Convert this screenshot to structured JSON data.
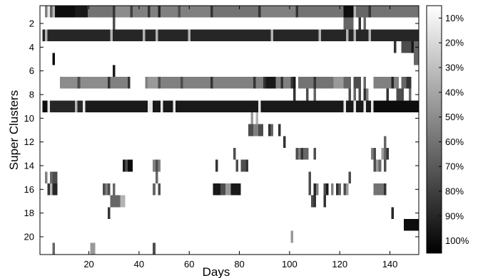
{
  "chart_data": {
    "type": "heatmap",
    "xlabel": "Days",
    "ylabel": "Super Clusters",
    "x_range": [
      1,
      151
    ],
    "y_range": [
      1,
      21
    ],
    "y_reversed": true,
    "x_ticks": [
      20,
      40,
      60,
      80,
      100,
      120,
      140
    ],
    "y_ticks": [
      2,
      4,
      6,
      8,
      10,
      12,
      14,
      16,
      18,
      20
    ],
    "colorbar": {
      "position": "right",
      "range": [
        0.05,
        1.05
      ],
      "ticks": [
        "10%",
        "20%",
        "30%",
        "40%",
        "50%",
        "60%",
        "70%",
        "80%",
        "90%",
        "100%"
      ],
      "tick_values": [
        0.1,
        0.2,
        0.3,
        0.4,
        0.5,
        0.6,
        0.7,
        0.8,
        0.9,
        1.0
      ],
      "colormap": "gray-reversed"
    },
    "colormap_low": "#ffffff",
    "colormap_high": "#000000",
    "rows": [
      {
        "cluster": 1,
        "segments": [
          [
            3,
            3,
            0.5
          ],
          [
            4,
            4,
            0.1
          ],
          [
            5,
            5,
            0.6
          ],
          [
            6,
            6,
            0.3
          ],
          [
            7,
            14,
            0.95
          ],
          [
            15,
            19,
            0.9
          ],
          [
            20,
            29,
            0.55
          ],
          [
            30,
            30,
            0.8
          ],
          [
            31,
            36,
            0.45
          ],
          [
            37,
            37,
            0.75
          ],
          [
            38,
            43,
            0.5
          ],
          [
            44,
            44,
            0.8
          ],
          [
            45,
            47,
            0.5
          ],
          [
            48,
            48,
            0.85
          ],
          [
            49,
            55,
            0.5
          ],
          [
            56,
            56,
            0.7
          ],
          [
            57,
            68,
            0.5
          ],
          [
            69,
            69,
            0.8
          ],
          [
            70,
            87,
            0.55
          ],
          [
            88,
            88,
            0.8
          ],
          [
            89,
            102,
            0.5
          ],
          [
            103,
            103,
            0.8
          ],
          [
            104,
            121,
            0.55
          ],
          [
            122,
            125,
            0.95
          ],
          [
            126,
            126,
            0.3
          ],
          [
            127,
            131,
            0.6
          ],
          [
            132,
            132,
            0.8
          ],
          [
            133,
            151,
            0.55
          ]
        ]
      },
      {
        "cluster": 2,
        "segments": [
          [
            30,
            30,
            0.7
          ],
          [
            122,
            125,
            0.6
          ],
          [
            128,
            128,
            0.8
          ],
          [
            130,
            130,
            0.6
          ]
        ]
      },
      {
        "cluster": 3,
        "segments": [
          [
            2,
            2,
            0.85
          ],
          [
            3,
            3,
            0.3
          ],
          [
            4,
            28,
            0.85
          ],
          [
            29,
            29,
            0.3
          ],
          [
            30,
            41,
            0.85
          ],
          [
            42,
            42,
            0.3
          ],
          [
            43,
            46,
            0.85
          ],
          [
            47,
            47,
            0.3
          ],
          [
            48,
            59,
            0.85
          ],
          [
            60,
            60,
            0.3
          ],
          [
            61,
            92,
            0.85
          ],
          [
            93,
            93,
            0.3
          ],
          [
            94,
            111,
            0.85
          ],
          [
            112,
            112,
            0.3
          ],
          [
            113,
            122,
            0.85
          ],
          [
            123,
            123,
            0.3
          ],
          [
            124,
            125,
            0.85
          ],
          [
            126,
            126,
            0.3
          ],
          [
            127,
            131,
            0.85
          ],
          [
            132,
            132,
            0.3
          ],
          [
            133,
            151,
            0.85
          ]
        ]
      },
      {
        "cluster": 4,
        "segments": [
          [
            142,
            142,
            0.8
          ],
          [
            145,
            148,
            0.7
          ],
          [
            149,
            149,
            0.9
          ],
          [
            150,
            151,
            0.6
          ]
        ]
      },
      {
        "cluster": 5,
        "segments": [
          [
            6,
            6,
            0.95
          ],
          [
            150,
            151,
            0.6
          ]
        ]
      },
      {
        "cluster": 6,
        "segments": [
          [
            30,
            30,
            0.9
          ]
        ]
      },
      {
        "cluster": 7,
        "segments": [
          [
            9,
            15,
            0.45
          ],
          [
            16,
            16,
            0.7
          ],
          [
            17,
            27,
            0.45
          ],
          [
            28,
            28,
            0.8
          ],
          [
            29,
            35,
            0.5
          ],
          [
            36,
            36,
            0.8
          ],
          [
            43,
            43,
            0.5
          ],
          [
            44,
            47,
            0.4
          ],
          [
            48,
            48,
            0.7
          ],
          [
            49,
            56,
            0.5
          ],
          [
            57,
            57,
            0.7
          ],
          [
            58,
            68,
            0.5
          ],
          [
            69,
            69,
            0.8
          ],
          [
            70,
            85,
            0.5
          ],
          [
            86,
            86,
            0.8
          ],
          [
            87,
            89,
            0.5
          ],
          [
            90,
            90,
            0.8
          ],
          [
            91,
            94,
            0.9
          ],
          [
            95,
            96,
            0.5
          ],
          [
            97,
            97,
            0.8
          ],
          [
            98,
            100,
            0.5
          ],
          [
            101,
            101,
            0.8
          ],
          [
            102,
            102,
            0.9
          ],
          [
            104,
            109,
            0.55
          ],
          [
            110,
            110,
            0.8
          ],
          [
            111,
            117,
            0.55
          ],
          [
            118,
            121,
            0.4
          ],
          [
            122,
            124,
            0.6
          ],
          [
            126,
            128,
            0.7
          ],
          [
            130,
            130,
            0.6
          ],
          [
            134,
            140,
            0.5
          ],
          [
            141,
            141,
            0.85
          ],
          [
            142,
            143,
            0.5
          ],
          [
            145,
            146,
            0.6
          ],
          [
            147,
            148,
            0.8
          ]
        ]
      },
      {
        "cluster": 8,
        "segments": [
          [
            102,
            102,
            0.8
          ],
          [
            107,
            107,
            0.7
          ],
          [
            110,
            110,
            0.6
          ],
          [
            124,
            124,
            0.7
          ],
          [
            126,
            126,
            0.6
          ],
          [
            128,
            128,
            0.7
          ],
          [
            130,
            130,
            0.8
          ],
          [
            131,
            131,
            0.5
          ],
          [
            139,
            139,
            0.8
          ],
          [
            143,
            145,
            0.7
          ],
          [
            148,
            148,
            0.6
          ]
        ]
      },
      {
        "cluster": 9,
        "segments": [
          [
            2,
            3,
            0.95
          ],
          [
            4,
            4,
            0.1
          ],
          [
            5,
            14,
            0.85
          ],
          [
            15,
            15,
            0.3
          ],
          [
            16,
            17,
            0.85
          ],
          [
            18,
            18,
            0.1
          ],
          [
            19,
            43,
            0.9
          ],
          [
            44,
            45,
            0.1
          ],
          [
            46,
            48,
            0.9
          ],
          [
            49,
            49,
            0.1
          ],
          [
            50,
            53,
            0.9
          ],
          [
            54,
            54,
            0.1
          ],
          [
            55,
            87,
            0.9
          ],
          [
            88,
            88,
            0.1
          ],
          [
            89,
            121,
            0.9
          ],
          [
            122,
            122,
            0.1
          ],
          [
            123,
            125,
            0.9
          ],
          [
            126,
            126,
            0.1
          ],
          [
            127,
            129,
            0.9
          ],
          [
            130,
            130,
            0.1
          ],
          [
            131,
            132,
            0.9
          ],
          [
            133,
            133,
            0.1
          ],
          [
            134,
            151,
            0.95
          ]
        ]
      },
      {
        "cluster": 10,
        "segments": [
          [
            85,
            85,
            0.4
          ],
          [
            87,
            87,
            0.3
          ]
        ]
      },
      {
        "cluster": 11,
        "segments": [
          [
            84,
            85,
            0.7
          ],
          [
            86,
            87,
            0.5
          ],
          [
            88,
            89,
            0.7
          ],
          [
            92,
            92,
            0.8
          ],
          [
            93,
            93,
            0.6
          ],
          [
            96,
            96,
            0.8
          ]
        ]
      },
      {
        "cluster": 12,
        "segments": [
          [
            98,
            98,
            0.8
          ],
          [
            138,
            138,
            0.6
          ]
        ]
      },
      {
        "cluster": 13,
        "segments": [
          [
            78,
            78,
            0.7
          ],
          [
            103,
            103,
            0.7
          ],
          [
            104,
            104,
            0.5
          ],
          [
            105,
            105,
            0.8
          ],
          [
            106,
            107,
            0.6
          ],
          [
            110,
            110,
            0.7
          ],
          [
            133,
            133,
            0.5
          ],
          [
            134,
            134,
            0.7
          ],
          [
            137,
            137,
            0.4
          ],
          [
            138,
            138,
            0.6
          ],
          [
            139,
            139,
            0.8
          ]
        ]
      },
      {
        "cluster": 14,
        "segments": [
          [
            34,
            34,
            0.9
          ],
          [
            35,
            35,
            0.7
          ],
          [
            36,
            37,
            0.95
          ],
          [
            46,
            46,
            0.5
          ],
          [
            47,
            47,
            0.7
          ],
          [
            48,
            48,
            0.5
          ],
          [
            71,
            71,
            0.8
          ],
          [
            79,
            79,
            0.7
          ],
          [
            81,
            82,
            0.7
          ],
          [
            83,
            83,
            0.8
          ],
          [
            134,
            134,
            0.7
          ],
          [
            135,
            135,
            0.4
          ],
          [
            136,
            136,
            0.6
          ],
          [
            138,
            138,
            0.7
          ]
        ]
      },
      {
        "cluster": 15,
        "segments": [
          [
            3,
            3,
            0.5
          ],
          [
            5,
            5,
            0.6
          ],
          [
            6,
            7,
            0.7
          ],
          [
            47,
            47,
            0.6
          ],
          [
            108,
            108,
            0.7
          ],
          [
            124,
            124,
            0.7
          ]
        ]
      },
      {
        "cluster": 16,
        "segments": [
          [
            4,
            4,
            0.8
          ],
          [
            5,
            5,
            0.3
          ],
          [
            6,
            7,
            0.85
          ],
          [
            26,
            26,
            0.7
          ],
          [
            27,
            27,
            0.5
          ],
          [
            28,
            28,
            0.7
          ],
          [
            30,
            30,
            0.6
          ],
          [
            46,
            46,
            0.6
          ],
          [
            48,
            48,
            0.7
          ],
          [
            70,
            72,
            0.9
          ],
          [
            73,
            74,
            0.7
          ],
          [
            75,
            76,
            0.4
          ],
          [
            77,
            80,
            0.9
          ],
          [
            108,
            108,
            0.7
          ],
          [
            110,
            110,
            0.85
          ],
          [
            111,
            111,
            0.5
          ],
          [
            114,
            114,
            0.7
          ],
          [
            115,
            115,
            0.9
          ],
          [
            117,
            117,
            0.5
          ],
          [
            119,
            119,
            0.8
          ],
          [
            120,
            120,
            0.6
          ],
          [
            122,
            122,
            0.7
          ],
          [
            123,
            123,
            0.4
          ],
          [
            134,
            137,
            0.55
          ],
          [
            138,
            138,
            0.8
          ]
        ]
      },
      {
        "cluster": 17,
        "segments": [
          [
            29,
            32,
            0.6
          ],
          [
            33,
            34,
            0.3
          ],
          [
            109,
            109,
            0.7
          ],
          [
            110,
            110,
            0.8
          ],
          [
            114,
            114,
            0.8
          ]
        ]
      },
      {
        "cluster": 18,
        "segments": [
          [
            28,
            28,
            0.8
          ],
          [
            141,
            141,
            0.85
          ]
        ]
      },
      {
        "cluster": 19,
        "segments": [
          [
            146,
            151,
            0.95
          ]
        ]
      },
      {
        "cluster": 20,
        "segments": [
          [
            101,
            101,
            0.4
          ]
        ]
      },
      {
        "cluster": 21,
        "segments": [
          [
            6,
            6,
            0.6
          ],
          [
            21,
            22,
            0.4
          ],
          [
            46,
            46,
            0.7
          ]
        ]
      }
    ]
  }
}
